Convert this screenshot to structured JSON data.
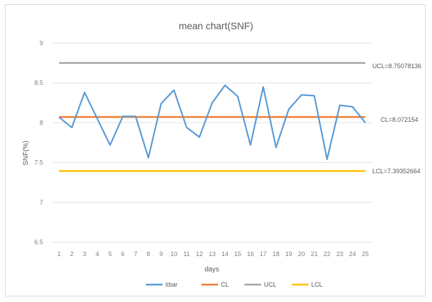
{
  "chart_data": {
    "type": "line",
    "title": "mean chart(SNF)",
    "xlabel": "days",
    "ylabel": "SNF(%)",
    "ylim": [
      6.5,
      9
    ],
    "yticks": [
      "6.5",
      "7",
      "7.5",
      "8",
      "8.5",
      "9"
    ],
    "x": [
      "1",
      "2",
      "3",
      "4",
      "5",
      "6",
      "7",
      "8",
      "9",
      "10",
      "11",
      "12",
      "13",
      "14",
      "15",
      "16",
      "17",
      "18",
      "19",
      "20",
      "21",
      "22",
      "23",
      "24",
      "25"
    ],
    "grid": "horizontal",
    "legend_position": "bottom",
    "series": [
      {
        "name": "x̄bar",
        "color": "#5b9bd5",
        "values": [
          8.07,
          7.94,
          8.38,
          8.05,
          7.72,
          8.08,
          8.08,
          7.56,
          8.24,
          8.41,
          7.94,
          7.82,
          8.25,
          8.47,
          8.33,
          7.72,
          8.45,
          7.69,
          8.17,
          8.35,
          8.34,
          7.54,
          8.22,
          8.2,
          8.0
        ]
      },
      {
        "name": "CL",
        "color": "#ed7d31",
        "constant": 8.072154
      },
      {
        "name": "UCL",
        "color": "#a5a5a5",
        "constant": 8.75078136
      },
      {
        "name": "LCL",
        "color": "#ffc000",
        "constant": 7.39352664
      }
    ],
    "annotations": {
      "ucl": "UCL=8.75078136",
      "cl": "CL=8.072154",
      "lcl": "LCL=7.39352664"
    }
  }
}
